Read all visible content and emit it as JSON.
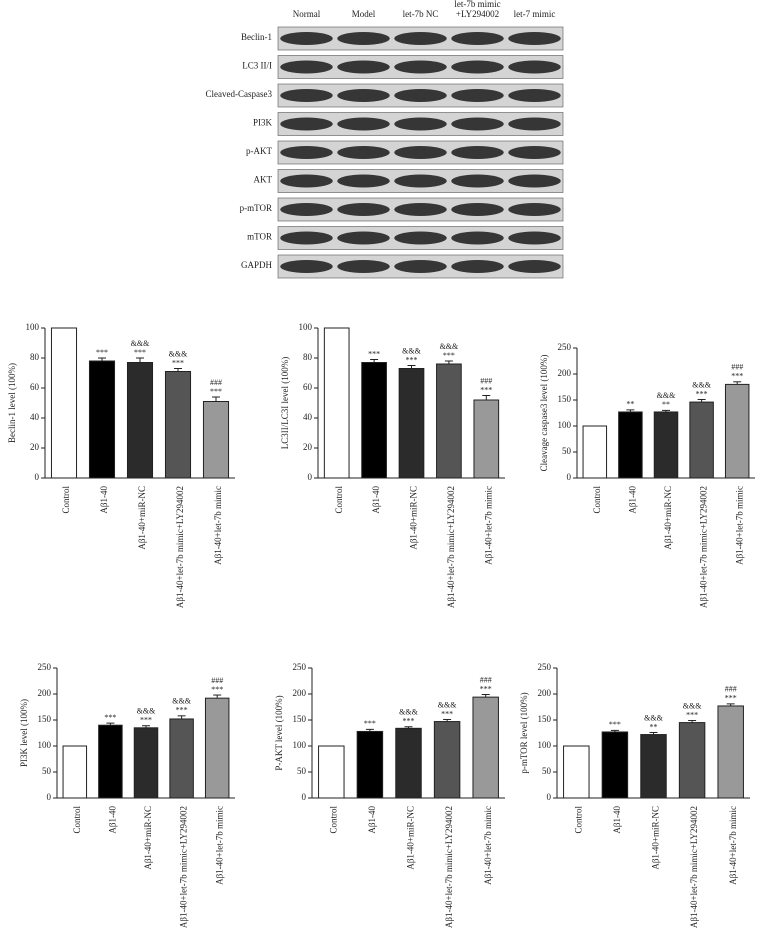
{
  "blot": {
    "lanes": [
      [
        "Normal"
      ],
      [
        "Model"
      ],
      [
        "let-7b NC"
      ],
      [
        "let-7b mimic",
        "+LY294002"
      ],
      [
        "let-7 mimic"
      ]
    ],
    "rows": [
      "Beclin-1",
      "LC3 II/I",
      "Cleaved-Caspase3",
      "PI3K",
      "p-AKT",
      "AKT",
      "p-mTOR",
      "mTOR",
      "GAPDH"
    ]
  },
  "chart_data": [
    {
      "type": "bar",
      "ylabel": "Beclin-1 level (100%)",
      "categories": [
        "Control",
        "Aβ1-40",
        "Aβ1-40+miR-NC",
        "Aβ1-40+let-7b mimic+LY294002",
        "Aβ1-40+let-7b mimic"
      ],
      "values": [
        100,
        78,
        77,
        71,
        51
      ],
      "errors": [
        0,
        2,
        3,
        2,
        3
      ],
      "annotations": [
        [],
        [
          "***"
        ],
        [
          "&&&",
          "***"
        ],
        [
          "&&&",
          "***"
        ],
        [
          "###",
          "***"
        ]
      ],
      "colors": [
        "#ffffff",
        "#000000",
        "#2b2b2b",
        "#555555",
        "#999999"
      ],
      "ylim": [
        0,
        100
      ],
      "yticks": [
        0,
        20,
        40,
        60,
        80,
        100
      ]
    },
    {
      "type": "bar",
      "ylabel": "LC3II/LC3I level (100%)",
      "categories": [
        "Control",
        "Aβ1-40",
        "Aβ1-40+miR-NC",
        "Aβ1-40+let-7b mimic+LY294002",
        "Aβ1-40+let-7b mimic"
      ],
      "values": [
        100,
        77,
        73,
        76,
        52
      ],
      "errors": [
        0,
        2,
        2,
        2,
        3
      ],
      "annotations": [
        [],
        [
          "***"
        ],
        [
          "&&&",
          "***"
        ],
        [
          "&&&",
          "***"
        ],
        [
          "###",
          "***"
        ]
      ],
      "colors": [
        "#ffffff",
        "#000000",
        "#2b2b2b",
        "#555555",
        "#999999"
      ],
      "ylim": [
        0,
        100
      ],
      "yticks": [
        0,
        20,
        40,
        60,
        80,
        100
      ]
    },
    {
      "type": "bar",
      "ylabel": "Cleavage caspase3 level (100%)",
      "categories": [
        "Control",
        "Aβ1-40",
        "Aβ1-40+miR-NC",
        "Aβ1-40+let-7b mimic+LY294002",
        "Aβ1-40+let-7b mimic"
      ],
      "values": [
        100,
        127,
        127,
        146,
        180
      ],
      "errors": [
        0,
        4,
        3,
        5,
        5
      ],
      "annotations": [
        [],
        [
          "**"
        ],
        [
          "&&&",
          "**"
        ],
        [
          "&&&",
          "***"
        ],
        [
          "###",
          "***"
        ]
      ],
      "colors": [
        "#ffffff",
        "#000000",
        "#2b2b2b",
        "#555555",
        "#999999"
      ],
      "ylim": [
        0,
        250
      ],
      "yticks": [
        0,
        50,
        100,
        150,
        200,
        250
      ]
    },
    {
      "type": "bar",
      "ylabel": "PI3K level (100%)",
      "categories": [
        "Control",
        "Aβ1-40",
        "Aβ1-40+miR-NC",
        "Aβ1-40+let-7b mimic+LY294002",
        "Aβ1-40+let-7b mimic"
      ],
      "values": [
        100,
        140,
        135,
        152,
        192
      ],
      "errors": [
        0,
        4,
        4,
        6,
        6
      ],
      "annotations": [
        [],
        [
          "***"
        ],
        [
          "&&&",
          "***"
        ],
        [
          "&&&",
          "***"
        ],
        [
          "###",
          "***"
        ]
      ],
      "colors": [
        "#ffffff",
        "#000000",
        "#2b2b2b",
        "#555555",
        "#999999"
      ],
      "ylim": [
        0,
        250
      ],
      "yticks": [
        0,
        50,
        100,
        150,
        200,
        250
      ]
    },
    {
      "type": "bar",
      "ylabel": "P-AKT level (100%)",
      "categories": [
        "Control",
        "Aβ1-40",
        "Aβ1-40+miR-NC",
        "Aβ1-40+let-7b mimic+LY294002",
        "Aβ1-40+let-7b mimic"
      ],
      "values": [
        100,
        128,
        134,
        147,
        194
      ],
      "errors": [
        0,
        4,
        3,
        4,
        5
      ],
      "annotations": [
        [],
        [
          "***"
        ],
        [
          "&&&",
          "***"
        ],
        [
          "&&&",
          "***"
        ],
        [
          "###",
          "***"
        ]
      ],
      "colors": [
        "#ffffff",
        "#000000",
        "#2b2b2b",
        "#555555",
        "#999999"
      ],
      "ylim": [
        0,
        250
      ],
      "yticks": [
        0,
        50,
        100,
        150,
        200,
        250
      ]
    },
    {
      "type": "bar",
      "ylabel": "p-mTOR level (100%)",
      "categories": [
        "Control",
        "Aβ1-40",
        "Aβ1-40+miR-NC",
        "Aβ1-40+let-7b mimic+LY294002",
        "Aβ1-40+let-7b mimic"
      ],
      "values": [
        100,
        127,
        122,
        145,
        177
      ],
      "errors": [
        0,
        3,
        4,
        4,
        4
      ],
      "annotations": [
        [],
        [
          "***"
        ],
        [
          "&&&",
          "**"
        ],
        [
          "&&&",
          "***"
        ],
        [
          "###",
          "***"
        ]
      ],
      "colors": [
        "#ffffff",
        "#000000",
        "#2b2b2b",
        "#555555",
        "#999999"
      ],
      "ylim": [
        0,
        250
      ],
      "yticks": [
        0,
        50,
        100,
        150,
        200,
        250
      ]
    }
  ]
}
